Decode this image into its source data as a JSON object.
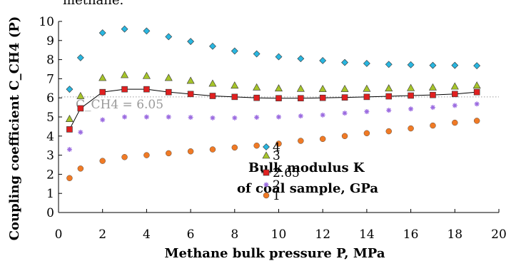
{
  "chart_data": {
    "type": "scatter",
    "top_fragment": "methane.",
    "xlabel": "Methane bulk pressure P, MPa",
    "ylabel": "Coupling coefficient C_CH4 (P)",
    "xlim": [
      0,
      20
    ],
    "ylim": [
      0,
      10
    ],
    "x_ticks": [
      0,
      2,
      4,
      6,
      8,
      10,
      12,
      14,
      16,
      18,
      20
    ],
    "y_ticks": [
      0,
      1,
      2,
      3,
      4,
      5,
      6,
      7,
      8,
      9,
      10
    ],
    "grid": false,
    "legend": {
      "title_line1": "Bulk modulus K",
      "title_line2": "of coal sample, GPa",
      "placement": "right"
    },
    "reference_line": {
      "y": 6.05,
      "label": "C_CH4 = 6.05",
      "style": "dotted"
    },
    "x": [
      0.5,
      1,
      2,
      3,
      4,
      5,
      6,
      7,
      8,
      9,
      10,
      11,
      12,
      13,
      14,
      15,
      16,
      17,
      18,
      19
    ],
    "series": [
      {
        "name": "4",
        "marker": "diamond",
        "color": "#29b6e0",
        "values": [
          6.45,
          8.1,
          9.4,
          9.6,
          9.5,
          9.2,
          8.95,
          8.7,
          8.45,
          8.3,
          8.15,
          8.05,
          7.95,
          7.85,
          7.8,
          7.75,
          7.73,
          7.7,
          7.7,
          7.68
        ]
      },
      {
        "name": "3",
        "marker": "triangle",
        "color": "#a6c42a",
        "values": [
          4.9,
          6.1,
          7.05,
          7.2,
          7.15,
          7.05,
          6.9,
          6.75,
          6.65,
          6.55,
          6.5,
          6.48,
          6.47,
          6.47,
          6.48,
          6.5,
          6.52,
          6.55,
          6.6,
          6.65
        ]
      },
      {
        "name": "2.65",
        "marker": "square",
        "color": "#e02020",
        "line": true,
        "values": [
          4.35,
          5.45,
          6.3,
          6.45,
          6.45,
          6.3,
          6.2,
          6.1,
          6.05,
          6.0,
          5.98,
          5.98,
          6.0,
          6.02,
          6.05,
          6.08,
          6.12,
          6.15,
          6.2,
          6.3
        ]
      },
      {
        "name": "2",
        "marker": "star",
        "color": "#9a6ae0",
        "values": [
          3.3,
          4.2,
          4.85,
          5.0,
          5.0,
          5.0,
          4.98,
          4.95,
          4.95,
          4.98,
          5.0,
          5.05,
          5.1,
          5.2,
          5.28,
          5.35,
          5.42,
          5.5,
          5.6,
          5.68
        ]
      },
      {
        "name": "1",
        "marker": "circle",
        "color": "#f07a25",
        "values": [
          1.8,
          2.3,
          2.7,
          2.9,
          3.0,
          3.1,
          3.2,
          3.3,
          3.4,
          3.5,
          3.6,
          3.75,
          3.85,
          4.0,
          4.15,
          4.25,
          4.4,
          4.55,
          4.7,
          4.8
        ]
      }
    ]
  }
}
